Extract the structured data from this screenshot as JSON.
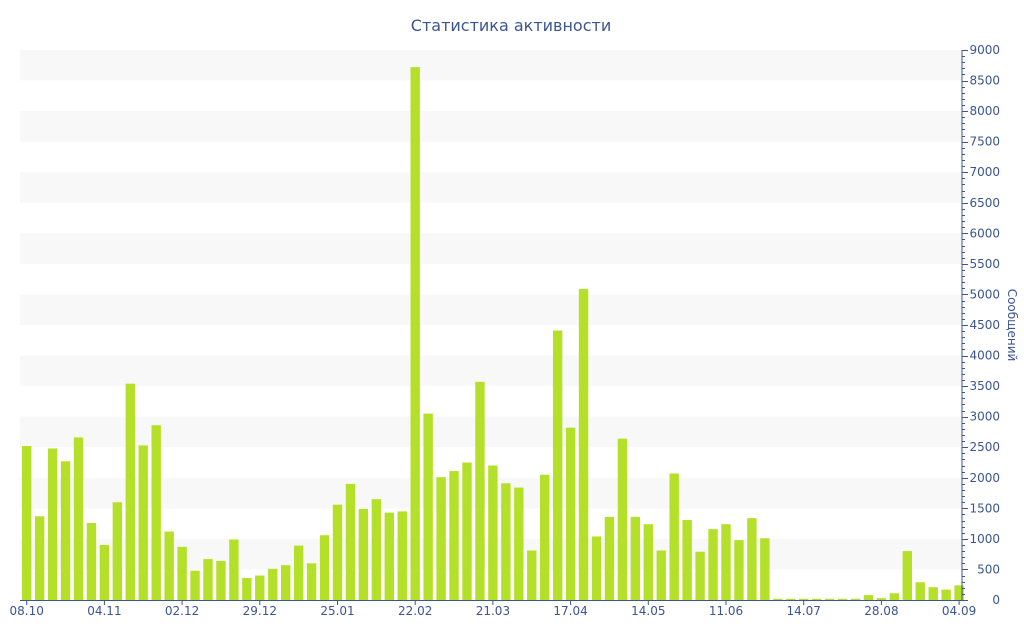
{
  "chart_data": {
    "type": "bar",
    "title": "Статистика активности",
    "xlabel": "",
    "ylabel": "Сообщений",
    "y_axis_position": "right",
    "ylim": [
      0,
      9000
    ],
    "y_ticks": [
      0,
      500,
      1000,
      1500,
      2000,
      2500,
      3000,
      3500,
      4000,
      4500,
      5000,
      5500,
      6000,
      6500,
      7000,
      7500,
      8000,
      8500,
      9000
    ],
    "grid": "alternating horizontal bands",
    "x_tick_labels": [
      {
        "index": 0,
        "label": "08.10"
      },
      {
        "index": 6,
        "label": "04.11"
      },
      {
        "index": 12,
        "label": "02.12"
      },
      {
        "index": 18,
        "label": "29.12"
      },
      {
        "index": 24,
        "label": "25.01"
      },
      {
        "index": 30,
        "label": "22.02"
      },
      {
        "index": 36,
        "label": "21.03"
      },
      {
        "index": 42,
        "label": "17.04"
      },
      {
        "index": 48,
        "label": "14.05"
      },
      {
        "index": 54,
        "label": "11.06"
      },
      {
        "index": 60,
        "label": "14.07"
      },
      {
        "index": 66,
        "label": "28.08"
      },
      {
        "index": 72,
        "label": "04.09"
      }
    ],
    "values": [
      2520,
      1370,
      2480,
      2270,
      2660,
      1260,
      900,
      1600,
      3540,
      2530,
      2860,
      1120,
      870,
      480,
      670,
      640,
      990,
      360,
      400,
      510,
      570,
      890,
      600,
      1060,
      1560,
      1900,
      1490,
      1650,
      1430,
      1450,
      8720,
      3050,
      2010,
      2110,
      2250,
      3570,
      2200,
      1910,
      1840,
      810,
      2050,
      4410,
      2820,
      5090,
      1040,
      1360,
      2640,
      1360,
      1240,
      810,
      2070,
      1310,
      790,
      1160,
      1240,
      980,
      1340,
      1010,
      20,
      20,
      20,
      20,
      20,
      20,
      20,
      80,
      30,
      110,
      800,
      290,
      210,
      170,
      240
    ],
    "colors": {
      "bar": "#b5e02a",
      "band": "#f8f8f8",
      "axis": "#3b5591",
      "text": "#3b5591"
    }
  }
}
